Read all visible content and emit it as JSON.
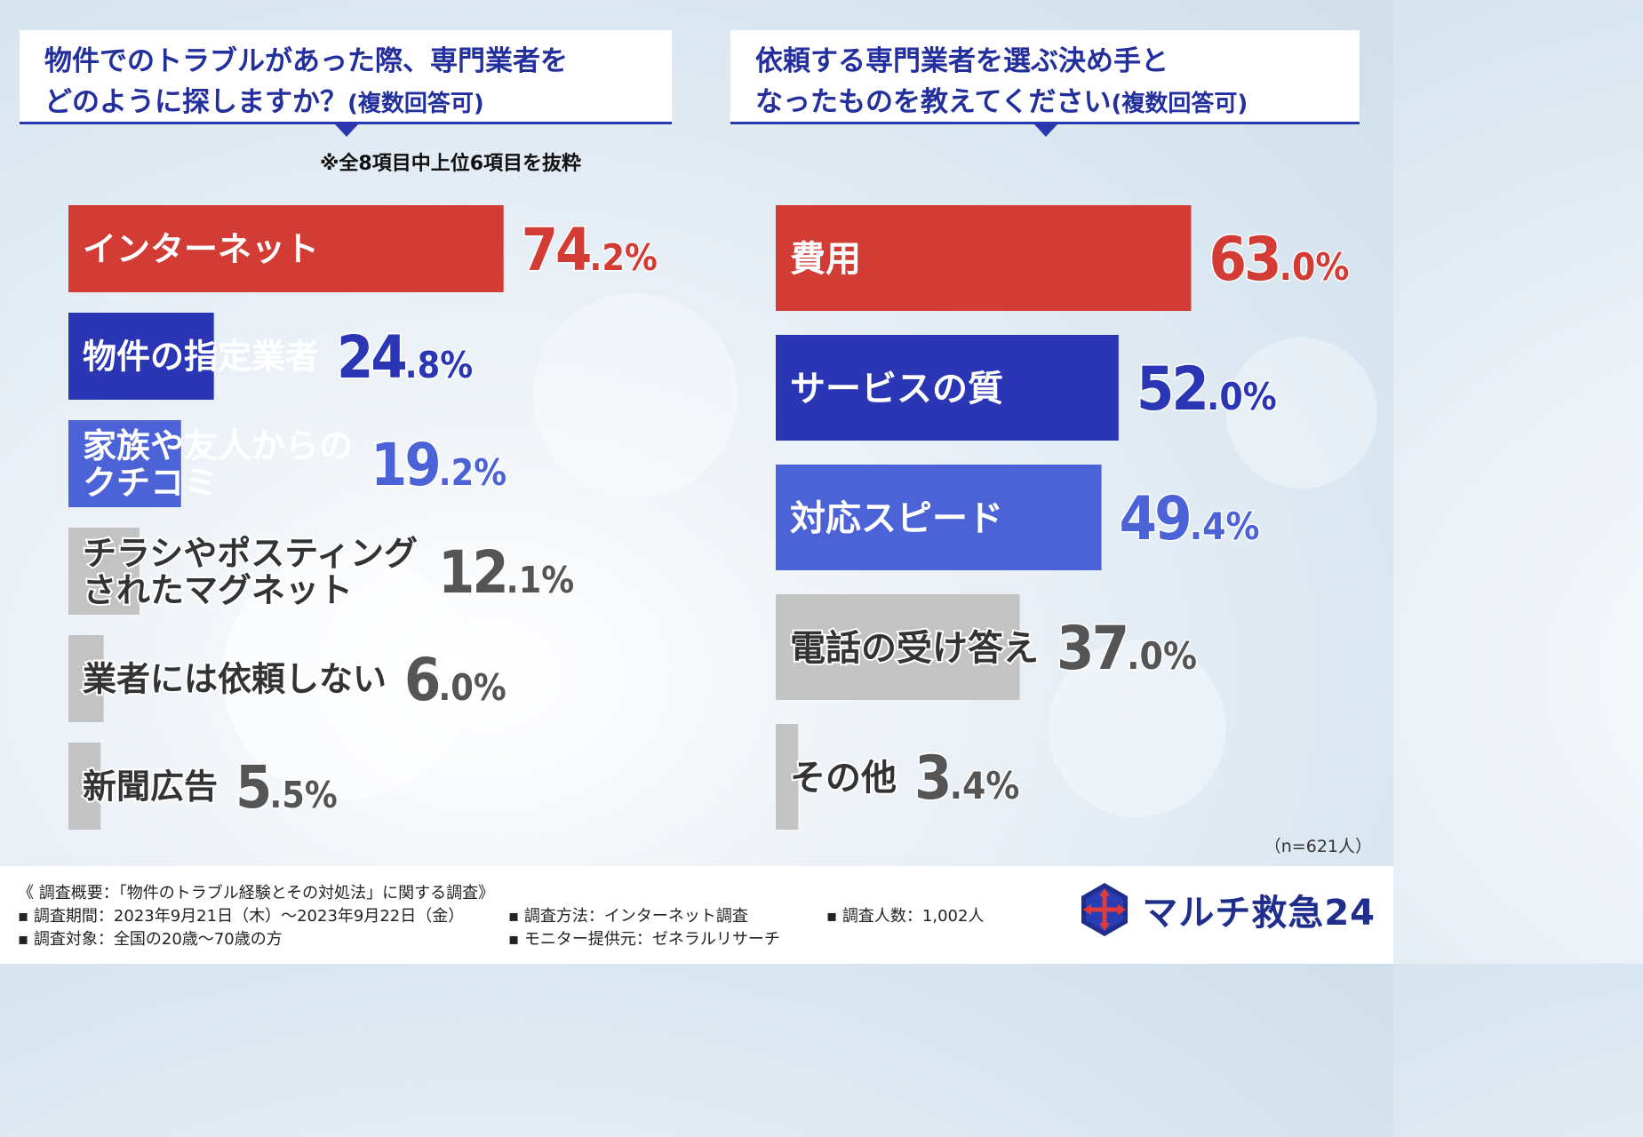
{
  "left_title": {
    "line1": "物件でのトラブルがあった際、専門業者を",
    "line2": "どのように探しますか？",
    "suffix": "(複数回答可)"
  },
  "left_note": "※全8項目中上位6項目を抜粋",
  "right_title": {
    "line1": "依頼する専門業者を選ぶ決め手と",
    "line2": "なったものを教えてください",
    "suffix": "(複数回答可)"
  },
  "n_note": "（n=621人）",
  "colors": {
    "red": "#d33b35",
    "navy": "#2a36b4",
    "blue": "#4b63d6",
    "gray": "#c3c3c3",
    "val_red": "#d33b35",
    "val_navy": "#2a36b4",
    "val_blue": "#4b63d6",
    "val_gray": "#555555"
  },
  "chart_data": [
    {
      "type": "bar",
      "orientation": "horizontal",
      "categories": [
        "インターネット",
        "物件の指定業者",
        "家族や友人からの\nクチコミ",
        "チラシやポスティング\nされたマグネット",
        "業者には依頼しない",
        "新聞広告"
      ],
      "values": [
        74.2,
        24.8,
        19.2,
        12.1,
        6.0,
        5.5
      ],
      "value_labels": [
        [
          "74",
          ".2%"
        ],
        [
          "24",
          ".8%"
        ],
        [
          "19",
          ".2%"
        ],
        [
          "12",
          ".1%"
        ],
        [
          "6",
          ".0%"
        ],
        [
          "5",
          ".5%"
        ]
      ],
      "colors": [
        "red",
        "navy",
        "blue",
        "gray",
        "gray",
        "gray"
      ],
      "xlim": [
        0,
        100
      ]
    },
    {
      "type": "bar",
      "orientation": "horizontal",
      "categories": [
        "費用",
        "サービスの質",
        "対応スピード",
        "電話の受け答え",
        "その他"
      ],
      "values": [
        63.0,
        52.0,
        49.4,
        37.0,
        3.4
      ],
      "value_labels": [
        [
          "63",
          ".0%"
        ],
        [
          "52",
          ".0%"
        ],
        [
          "49",
          ".4%"
        ],
        [
          "37",
          ".0%"
        ],
        [
          "3",
          ".4%"
        ]
      ],
      "colors": [
        "red",
        "navy",
        "blue",
        "gray",
        "gray"
      ],
      "xlim": [
        0,
        100
      ]
    }
  ],
  "footer": {
    "heading": "《 調査概要：「物件のトラブル経験とその対処法」に関する調査》",
    "period": "▪ 調査期間：2023年9月21日（木）～2023年9月22日（金）",
    "method": "▪ 調査方法：インターネット調査",
    "count": "▪ 調査人数：1,002人",
    "target": "▪ 調査対象：全国の20歳～70歳の方",
    "provider": "▪ モニター提供元：ゼネラルリサーチ"
  },
  "logo": {
    "text": "マルチ救急24",
    "icon": "cross-arrows-hexagon-icon"
  }
}
